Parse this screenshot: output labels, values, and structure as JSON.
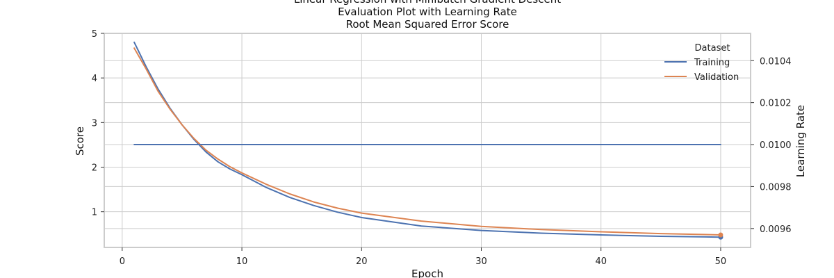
{
  "chart_data": {
    "type": "line",
    "title_lines": [
      "Linear Regression with Minibatch Gradient Descent",
      "Evaluation Plot with Learning Rate",
      "Root Mean Squared Error Score"
    ],
    "xlabel": "Epoch",
    "ylabel": "Score",
    "y2label": "Learning Rate",
    "xlim": [
      -1.5,
      52.5
    ],
    "ylim": [
      0.2,
      5.0
    ],
    "y2lim": [
      0.00951,
      0.01053
    ],
    "xticks": [
      "0",
      "10",
      "20",
      "30",
      "40",
      "50"
    ],
    "yticks": [
      "1",
      "2",
      "3",
      "4",
      "5"
    ],
    "y2ticks": [
      "0.0096",
      "0.0098",
      "0.0100",
      "0.0102",
      "0.0104"
    ],
    "grid": true,
    "legend": {
      "title": "Dataset",
      "position": "top-right",
      "entries": [
        "Training",
        "Validation"
      ]
    },
    "colors": {
      "training": "#4c72b0",
      "validation": "#dd8452",
      "grid": "#cccccc",
      "frame": "#cccccc"
    },
    "series": [
      {
        "name": "Training",
        "axis": "left",
        "x": [
          1,
          2,
          3,
          4,
          5,
          6,
          7,
          8,
          9,
          10,
          12,
          14,
          16,
          18,
          20,
          25,
          30,
          35,
          40,
          45,
          50
        ],
        "values": [
          4.8,
          4.25,
          3.75,
          3.32,
          2.95,
          2.62,
          2.34,
          2.12,
          1.96,
          1.83,
          1.55,
          1.32,
          1.14,
          0.99,
          0.87,
          0.68,
          0.58,
          0.52,
          0.48,
          0.45,
          0.43
        ]
      },
      {
        "name": "Validation",
        "axis": "left",
        "x": [
          1,
          2,
          3,
          4,
          5,
          6,
          7,
          8,
          9,
          10,
          12,
          14,
          16,
          18,
          20,
          25,
          30,
          35,
          40,
          45,
          50
        ],
        "values": [
          4.67,
          4.2,
          3.7,
          3.3,
          2.95,
          2.64,
          2.38,
          2.18,
          2.01,
          1.87,
          1.62,
          1.4,
          1.22,
          1.08,
          0.97,
          0.79,
          0.67,
          0.6,
          0.55,
          0.51,
          0.48
        ]
      },
      {
        "name": "Learning Rate",
        "axis": "right",
        "x": [
          1,
          50
        ],
        "values": [
          0.01,
          0.01
        ]
      }
    ]
  }
}
